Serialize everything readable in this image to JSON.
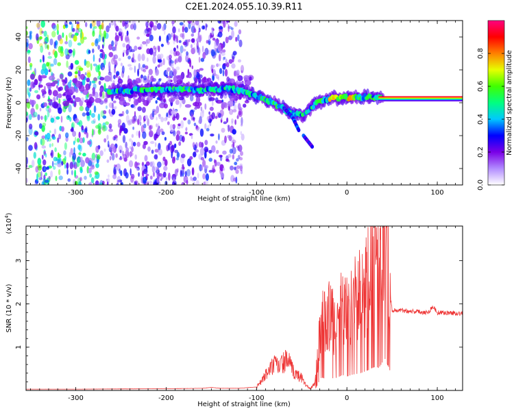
{
  "title": "C2E1.2024.055.10.39.R11",
  "chart_data": [
    {
      "type": "heatmap",
      "xlabel": "Height of straight line (km)",
      "ylabel": "Frequency (Hz)",
      "xlim": [
        -355,
        128
      ],
      "ylim": [
        -50,
        50
      ],
      "xticks": [
        -300,
        -200,
        -100,
        0,
        100
      ],
      "yticks": [
        -40,
        -20,
        0,
        20,
        40
      ],
      "grid": false,
      "colorbar": {
        "label": "Normalized spectral amplitude",
        "range": [
          0,
          1
        ],
        "ticks": [
          0.0,
          0.2,
          0.4,
          0.6,
          0.8
        ],
        "colors": [
          "#ffffff",
          "#b28cff",
          "#7a00e6",
          "#0000ff",
          "#00c8ff",
          "#00ff80",
          "#40ff00",
          "#e6ff00",
          "#ff8000",
          "#ff0000",
          "#ff0080"
        ]
      },
      "ridge": [
        {
          "x": -265,
          "y": 6.5
        },
        {
          "x": -240,
          "y": 7.5
        },
        {
          "x": -200,
          "y": 8
        },
        {
          "x": -160,
          "y": 8
        },
        {
          "x": -130,
          "y": 8.5
        },
        {
          "x": -115,
          "y": 7
        },
        {
          "x": -100,
          "y": 4
        },
        {
          "x": -85,
          "y": 1
        },
        {
          "x": -72,
          "y": -3
        },
        {
          "x": -62,
          "y": -6
        },
        {
          "x": -50,
          "y": -8
        },
        {
          "x": -42,
          "y": -4
        },
        {
          "x": -30,
          "y": 1
        },
        {
          "x": -15,
          "y": 3
        },
        {
          "x": 0,
          "y": 3
        },
        {
          "x": 20,
          "y": 3.5
        },
        {
          "x": 35,
          "y": 3
        },
        {
          "x": 60,
          "y": 2.5
        },
        {
          "x": 100,
          "y": 2
        },
        {
          "x": 128,
          "y": 2
        }
      ],
      "branches": [
        {
          "points": [
            {
              "x": -70,
              "y": -3
            },
            {
              "x": -60,
              "y": -9
            },
            {
              "x": -53,
              "y": -17
            }
          ]
        },
        {
          "points": [
            {
              "x": -48,
              "y": -20
            },
            {
              "x": -38,
              "y": -27
            }
          ]
        }
      ]
    },
    {
      "type": "line",
      "xlabel": "Height of straight line (km)",
      "ylabel": "SNR (10 * v/v)",
      "yscale_label": "(x10",
      "yscale_exp": "4",
      "yscale_close": ")",
      "xlim": [
        -355,
        128
      ],
      "ylim": [
        0,
        38000
      ],
      "xticks": [
        -300,
        -200,
        -100,
        0,
        100
      ],
      "ytick_values": [
        10000,
        20000,
        30000
      ],
      "ytick_labels": [
        "1",
        "2",
        "3"
      ],
      "color": "#ee3333",
      "grid": false,
      "series": [
        {
          "x": [
            -355,
            -300,
            -250,
            -200,
            -160,
            -150,
            -140,
            -120,
            -100,
            -95,
            -90,
            -85,
            -80,
            -75,
            -70,
            -65,
            -60,
            -55,
            -50,
            -45,
            -42,
            -40,
            -35,
            -32,
            -30,
            -28,
            -25,
            -20,
            -15,
            -10,
            -5,
            0,
            5,
            10,
            15,
            20,
            25,
            28,
            32,
            35,
            38,
            40,
            42,
            45,
            48,
            50,
            60,
            80,
            90,
            95,
            100,
            128
          ],
          "values": [
            300,
            300,
            350,
            400,
            500,
            700,
            500,
            500,
            800,
            2000,
            3500,
            5000,
            6000,
            5500,
            6500,
            7000,
            4500,
            3500,
            3000,
            1200,
            600,
            400,
            2000,
            8000,
            12000,
            15000,
            14000,
            16000,
            14000,
            15000,
            18000,
            16000,
            18000,
            19000,
            20000,
            22000,
            24000,
            26000,
            28000,
            26000,
            30000,
            34000,
            37000,
            30000,
            22000,
            18500,
            18500,
            18200,
            18000,
            19500,
            18000,
            17800
          ]
        }
      ]
    }
  ]
}
